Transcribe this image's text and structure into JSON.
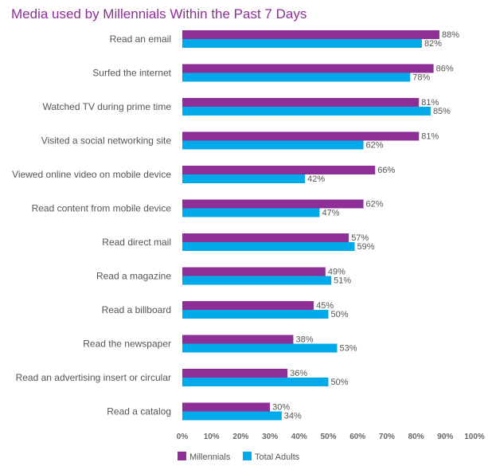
{
  "chart_data": {
    "type": "bar",
    "orientation": "horizontal",
    "title": "Media used by Millennials Within the Past 7 Days",
    "categories": [
      "Read an email",
      "Surfed the internet",
      "Watched TV during prime time",
      "Visited a social networking site",
      "Viewed online video on mobile device",
      "Read content from mobile device",
      "Read direct mail",
      "Read a magazine",
      "Read a billboard",
      "Read the newspaper",
      "Read an advertising insert or circular",
      "Read a catalog"
    ],
    "series": [
      {
        "name": "Millennials",
        "color": "#8e2f97",
        "values": [
          88,
          86,
          81,
          81,
          66,
          62,
          57,
          49,
          45,
          38,
          36,
          30
        ]
      },
      {
        "name": "Total Adults",
        "color": "#00a9e9",
        "values": [
          82,
          78,
          85,
          62,
          42,
          47,
          59,
          51,
          50,
          53,
          50,
          34
        ]
      }
    ],
    "value_format": "{v}%",
    "xlim": [
      0,
      100
    ],
    "xticks": [
      "0%",
      "10%",
      "20%",
      "30%",
      "40%",
      "50%",
      "60%",
      "70%",
      "80%",
      "90%",
      "100%"
    ],
    "grid": false,
    "legend_position": "bottom-left"
  }
}
